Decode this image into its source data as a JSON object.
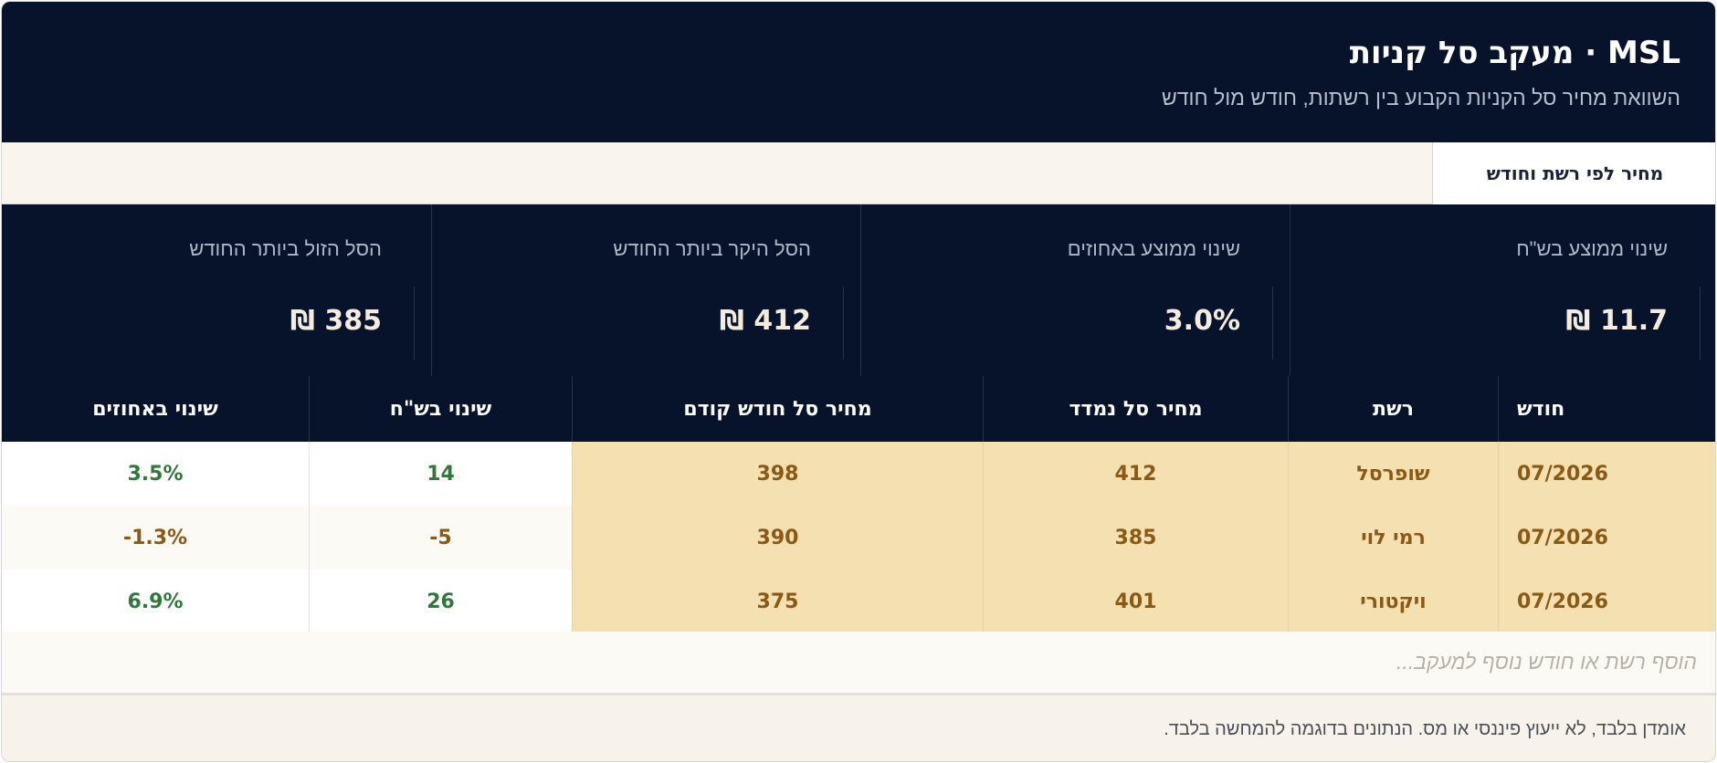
{
  "header": {
    "title": "MSL · מעקב סל קניות",
    "subtitle": "השוואת מחיר סל הקניות הקבוע בין רשתות, חודש מול חודש"
  },
  "tabs": [
    {
      "label": "מחיר לפי רשת וחודש",
      "active": true
    }
  ],
  "stats": [
    {
      "label": "שינוי ממוצע בש\"ח",
      "value": "11.7 ₪"
    },
    {
      "label": "שינוי ממוצע באחוזים",
      "value": "3.0%"
    },
    {
      "label": "הסל היקר ביותר החודש",
      "value": "412 ₪"
    },
    {
      "label": "הסל הזול ביותר החודש",
      "value": "385 ₪"
    }
  ],
  "table": {
    "columns": [
      "חודש",
      "רשת",
      "מחיר סל נמדד",
      "מחיר סל חודש קודם",
      "שינוי בש\"ח",
      "שינוי באחוזים"
    ],
    "rows": [
      [
        "07/2026",
        "שופרסל",
        "412",
        "398",
        "14",
        "3.5%"
      ],
      [
        "07/2026",
        "רמי לוי",
        "385",
        "390",
        "5-",
        "1.3%-"
      ],
      [
        "07/2026",
        "ויקטורי",
        "401",
        "375",
        "26",
        "6.9%"
      ]
    ],
    "add_placeholder": "הוסף רשת או חודש נוסף למעקב..."
  },
  "footer": {
    "disclaimer": "אומדן בלבד, לא ייעוץ פיננסי או מס. הנתונים בדוגמה להמחשה בלבד."
  },
  "colors": {
    "header_bg": "#06132b",
    "highlight_bg": "#f5e0b2",
    "highlight_text": "#8a5a14",
    "positive_text": "#2f7a3a"
  }
}
